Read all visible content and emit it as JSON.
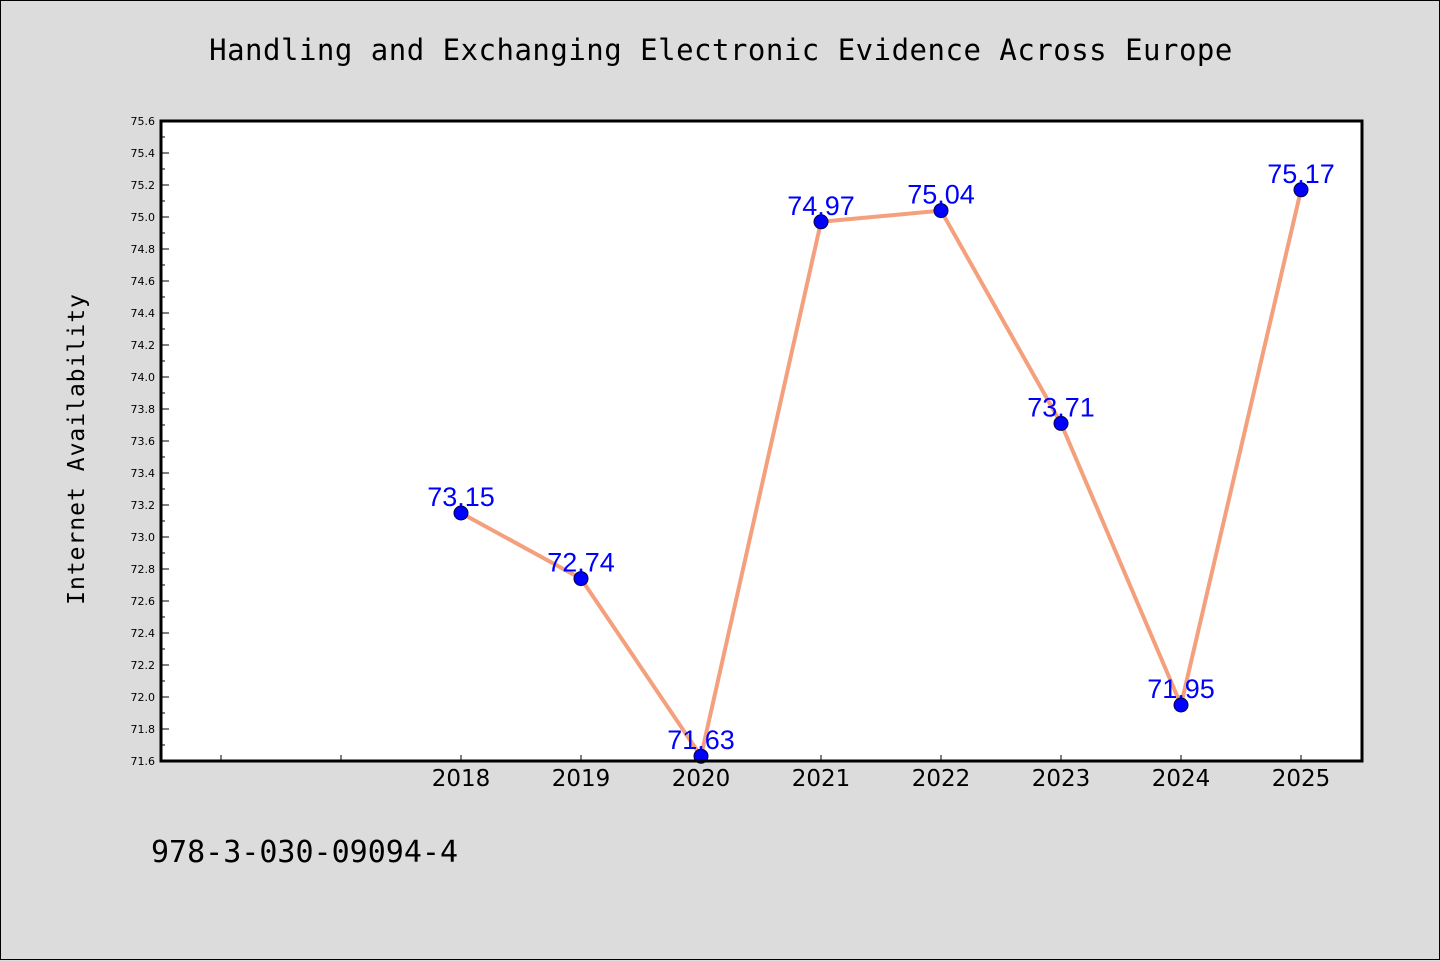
{
  "chart_data": {
    "type": "line",
    "title": "Handling and Exchanging Electronic Evidence Across Europe",
    "xlabel": "",
    "ylabel": "Internet Availability",
    "categories": [
      "2018",
      "2019",
      "2020",
      "2021",
      "2022",
      "2023",
      "2024",
      "2025"
    ],
    "series": [
      {
        "values": [
          73.15,
          72.74,
          71.63,
          74.97,
          75.04,
          73.71,
          71.95,
          75.17
        ],
        "data_labels": [
          "73.15",
          "72.74",
          "71.63",
          "74.97",
          "75.04",
          "73.71",
          "71.95",
          "75.17"
        ],
        "line_color": "#f4a07c",
        "marker_color": "#0000ff"
      }
    ],
    "ylim": [
      71.6,
      75.6
    ],
    "yticks": [
      "71.6",
      "71.8",
      "72.0",
      "72.2",
      "72.4",
      "72.6",
      "72.8",
      "73.0",
      "73.2",
      "73.4",
      "73.6",
      "73.8",
      "74.0",
      "74.2",
      "74.4",
      "74.6",
      "74.8",
      "75.0",
      "75.2",
      "75.4",
      "75.6"
    ],
    "grid": false,
    "plot_background": "#ffffff",
    "figure_background": "#dcdcdc"
  },
  "footer": {
    "identifier": "978-3-030-09094-4"
  }
}
